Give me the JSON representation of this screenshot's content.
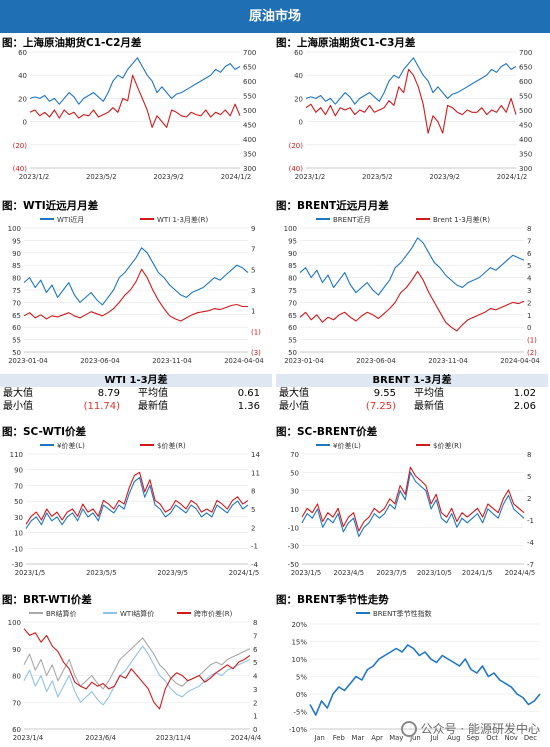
{
  "banner": "原油市场",
  "colors": {
    "blue": "#1f77c4",
    "red": "#d11b1b",
    "gray": "#a8a8a8",
    "lightblue": "#8fc3ea"
  },
  "panels": {
    "p1_title": "图：上海原油期货C1-C2月差",
    "p2_title": "图：上海原油期货C1-C3月差",
    "p3_title": "图：WTI近远月月差",
    "p4_title": "图：BRENT近远月月差",
    "p5_title": "图：SC-WTI价差",
    "p6_title": "图：SC-BRENT价差",
    "p7_title": "图：BRT-WTI价差",
    "p8_title": "图：BRENT季节性走势"
  },
  "tables": {
    "wti": {
      "title": "WTI 1-3月差",
      "max_label": "最大值",
      "max_value": "8.79",
      "avg_label": "平均值",
      "avg_value": "0.61",
      "min_label": "最小值",
      "min_value": "(11.74)",
      "latest_label": "最新值",
      "latest_value": "1.36"
    },
    "brent": {
      "title": "BRENT 1-3月差",
      "max_label": "最大值",
      "max_value": "9.55",
      "avg_label": "平均值",
      "avg_value": "1.02",
      "min_label": "最小值",
      "min_value": "(7.25)",
      "latest_label": "最新值",
      "latest_value": "2.06"
    }
  },
  "watermark": "公众号 · 能源研发中心",
  "chart_data": [
    {
      "id": "c1",
      "type": "line",
      "x_ticks": [
        "2023/1/2",
        "2023/5/2",
        "2023/9/2",
        "2024/1/2"
      ],
      "yleft_ticks": [
        "60",
        "40",
        "20",
        "0",
        "(20)",
        "(40)"
      ],
      "ylim_left": [
        -40,
        60
      ],
      "yright_ticks": [
        "700",
        "650",
        "600",
        "550",
        "500",
        "450",
        "400",
        "350",
        "300"
      ],
      "ylim_right": [
        300,
        700
      ],
      "series": [
        {
          "axis": "right",
          "color": "blue",
          "values": [
            540,
            545,
            540,
            550,
            530,
            540,
            520,
            540,
            560,
            545,
            520,
            540,
            550,
            560,
            545,
            530,
            560,
            600,
            620,
            610,
            640,
            660,
            680,
            650,
            620,
            600,
            560,
            580,
            560,
            540,
            555,
            560,
            570,
            580,
            590,
            600,
            610,
            620,
            640,
            630,
            650,
            660,
            640,
            650
          ]
        },
        {
          "axis": "left",
          "color": "red",
          "values": [
            8,
            10,
            5,
            8,
            4,
            10,
            3,
            10,
            6,
            8,
            3,
            6,
            5,
            10,
            4,
            6,
            8,
            12,
            8,
            20,
            18,
            40,
            30,
            20,
            10,
            -5,
            5,
            0,
            -5,
            10,
            8,
            5,
            4,
            8,
            6,
            5,
            10,
            4,
            8,
            6,
            10,
            5,
            15,
            5
          ]
        }
      ]
    },
    {
      "id": "c2",
      "type": "line",
      "x_ticks": [
        "2023/1/2",
        "2023/5/2",
        "2023/9/2",
        "2024/1/2"
      ],
      "yleft_ticks": [
        "60",
        "40",
        "20",
        "0",
        "(20)",
        "(40)"
      ],
      "ylim_left": [
        -40,
        60
      ],
      "yright_ticks": [
        "700",
        "650",
        "600",
        "550",
        "500",
        "450",
        "400",
        "350",
        "300"
      ],
      "ylim_right": [
        300,
        700
      ],
      "series": [
        {
          "axis": "right",
          "color": "blue",
          "values": [
            540,
            545,
            540,
            550,
            530,
            540,
            520,
            540,
            560,
            545,
            520,
            540,
            550,
            560,
            545,
            530,
            560,
            600,
            620,
            610,
            640,
            660,
            680,
            650,
            620,
            600,
            560,
            580,
            560,
            540,
            555,
            560,
            570,
            580,
            590,
            600,
            610,
            620,
            640,
            630,
            650,
            660,
            640,
            650
          ]
        },
        {
          "axis": "left",
          "color": "red",
          "values": [
            12,
            15,
            8,
            12,
            6,
            14,
            5,
            12,
            10,
            12,
            6,
            10,
            8,
            14,
            8,
            10,
            12,
            18,
            14,
            30,
            25,
            45,
            40,
            30,
            15,
            -10,
            5,
            0,
            -10,
            14,
            12,
            8,
            6,
            10,
            8,
            8,
            12,
            6,
            10,
            8,
            14,
            8,
            20,
            6
          ]
        }
      ]
    },
    {
      "id": "c3",
      "type": "line",
      "legend": [
        "WTI近月",
        "WTI 1-3月差(R)"
      ],
      "x_ticks": [
        "2023-01-04",
        "2023-06-04",
        "2023-11-04",
        "2024-04-04"
      ],
      "yleft_ticks": [
        "100",
        "95",
        "90",
        "85",
        "80",
        "75",
        "70",
        "65",
        "60",
        "55",
        "50"
      ],
      "ylim_left": [
        50,
        100
      ],
      "yright_ticks": [
        "9",
        "7",
        "5",
        "3",
        "1",
        "(1)",
        "(3)"
      ],
      "ylim_right": [
        -3,
        9
      ],
      "series": [
        {
          "axis": "left",
          "color": "blue",
          "values": [
            78,
            80,
            76,
            79,
            74,
            77,
            72,
            75,
            78,
            73,
            70,
            72,
            74,
            71,
            69,
            72,
            75,
            80,
            82,
            85,
            88,
            92,
            90,
            86,
            82,
            80,
            77,
            75,
            73,
            72,
            74,
            75,
            76,
            78,
            80,
            79,
            81,
            83,
            85,
            84,
            82
          ]
        },
        {
          "axis": "right",
          "color": "red",
          "values": [
            0.5,
            0.8,
            0.3,
            0.6,
            0.2,
            0.5,
            0.4,
            0.6,
            0.8,
            0.5,
            0.3,
            0.6,
            0.9,
            0.7,
            0.5,
            0.8,
            1.2,
            1.8,
            2.5,
            3.0,
            3.8,
            5.0,
            4.2,
            3.0,
            2.0,
            1.2,
            0.5,
            0.2,
            0.0,
            0.3,
            0.6,
            0.8,
            0.9,
            1.0,
            1.2,
            1.1,
            1.3,
            1.5,
            1.6,
            1.4,
            1.4
          ]
        }
      ]
    },
    {
      "id": "c4",
      "type": "line",
      "legend": [
        "BRENT近月",
        "Brent 1-3月差(R)"
      ],
      "x_ticks": [
        "2023-01-04",
        "2023-06-04",
        "2023-11-04",
        "2024-04-04"
      ],
      "yleft_ticks": [
        "100",
        "95",
        "90",
        "85",
        "80",
        "75",
        "70",
        "65",
        "60",
        "55",
        "50"
      ],
      "ylim_left": [
        50,
        100
      ],
      "yright_ticks": [
        "8",
        "7",
        "6",
        "5",
        "4",
        "3",
        "2",
        "1",
        "0",
        "(1)",
        "(2)"
      ],
      "ylim_right": [
        -2,
        8
      ],
      "series": [
        {
          "axis": "left",
          "color": "blue",
          "values": [
            82,
            84,
            80,
            83,
            78,
            81,
            76,
            79,
            82,
            77,
            74,
            76,
            78,
            75,
            73,
            76,
            79,
            84,
            86,
            89,
            92,
            96,
            94,
            90,
            86,
            84,
            81,
            79,
            77,
            76,
            78,
            79,
            80,
            82,
            84,
            83,
            85,
            87,
            89,
            88,
            87
          ]
        },
        {
          "axis": "right",
          "color": "red",
          "values": [
            0.8,
            1.2,
            0.6,
            1.0,
            0.4,
            0.8,
            0.6,
            1.0,
            1.2,
            0.8,
            0.5,
            0.9,
            1.2,
            1.0,
            0.7,
            1.1,
            1.5,
            2.0,
            2.8,
            3.2,
            3.8,
            4.5,
            3.8,
            2.8,
            2.0,
            1.2,
            0.4,
            0.0,
            -0.3,
            0.2,
            0.6,
            0.8,
            1.0,
            1.2,
            1.5,
            1.4,
            1.6,
            1.8,
            2.0,
            1.9,
            2.1
          ]
        }
      ]
    },
    {
      "id": "c5",
      "type": "line",
      "legend": [
        "¥价差(L)",
        "$价差(R)"
      ],
      "x_ticks": [
        "2023/1/5",
        "2023/5/5",
        "2023/9/5",
        "2024/1/5"
      ],
      "yleft_ticks": [
        "110",
        "90",
        "70",
        "50",
        "30",
        "10",
        "-10",
        "-30"
      ],
      "ylim_left": [
        -30,
        110
      ],
      "yright_ticks": [
        "14",
        "11",
        "8",
        "5",
        "2",
        "-1",
        "-4"
      ],
      "ylim_right": [
        -4,
        14
      ],
      "series": [
        {
          "axis": "left",
          "color": "blue",
          "values": [
            15,
            25,
            30,
            20,
            35,
            25,
            30,
            20,
            30,
            35,
            25,
            40,
            30,
            35,
            25,
            45,
            40,
            35,
            45,
            40,
            60,
            75,
            80,
            55,
            70,
            45,
            40,
            30,
            35,
            45,
            40,
            35,
            45,
            40,
            30,
            35,
            30,
            45,
            40,
            35,
            45,
            50,
            40,
            45
          ]
        },
        {
          "axis": "right",
          "color": "red",
          "values": [
            2.5,
            3.8,
            4.5,
            3.2,
            5.0,
            3.8,
            4.5,
            3.2,
            4.5,
            5.0,
            3.8,
            5.8,
            4.5,
            5.0,
            3.8,
            6.4,
            5.8,
            5.0,
            6.4,
            5.8,
            8.5,
            10.5,
            11.0,
            7.8,
            9.8,
            6.4,
            5.8,
            4.5,
            5.0,
            6.4,
            5.8,
            5.0,
            6.4,
            5.8,
            4.5,
            5.0,
            4.5,
            6.4,
            5.8,
            5.0,
            6.4,
            7.0,
            5.8,
            6.4
          ]
        }
      ]
    },
    {
      "id": "c6",
      "type": "line",
      "legend": [
        "¥价差(L)",
        "$价差(R)"
      ],
      "x_ticks": [
        "2023/1/5",
        "2023/4/5",
        "2023/7/5",
        "2023/10/5",
        "2024/1/5",
        "2024/4/5"
      ],
      "yleft_ticks": [
        "70",
        "50",
        "30",
        "10",
        "-10",
        "-30",
        "-50"
      ],
      "ylim_left": [
        -50,
        70
      ],
      "yright_ticks": [
        "8",
        "5",
        "2",
        "-1",
        "-4",
        "-7"
      ],
      "ylim_right": [
        -7,
        8
      ],
      "series": [
        {
          "axis": "left",
          "color": "blue",
          "values": [
            -5,
            5,
            0,
            10,
            -10,
            0,
            -5,
            5,
            -15,
            -5,
            0,
            -20,
            -10,
            -5,
            5,
            0,
            5,
            15,
            10,
            30,
            20,
            50,
            40,
            35,
            30,
            10,
            20,
            0,
            -5,
            5,
            -10,
            0,
            -5,
            0,
            5,
            -5,
            10,
            5,
            0,
            15,
            25,
            10,
            5,
            0
          ]
        },
        {
          "axis": "right",
          "color": "red",
          "values": [
            -0.6,
            0.6,
            0.0,
            1.2,
            -1.2,
            0.0,
            -0.6,
            0.6,
            -1.9,
            -0.6,
            0.0,
            -2.5,
            -1.2,
            -0.6,
            0.6,
            0.0,
            0.6,
            1.9,
            1.2,
            3.7,
            2.5,
            6.2,
            5.0,
            4.4,
            3.7,
            1.2,
            2.5,
            0.0,
            -0.6,
            0.6,
            -1.2,
            0.0,
            -0.6,
            0.0,
            0.6,
            -0.6,
            1.2,
            0.6,
            0.0,
            1.9,
            3.1,
            1.2,
            0.6,
            0.0
          ]
        }
      ]
    },
    {
      "id": "c7",
      "type": "line",
      "legend": [
        "BR结算价",
        "WTI结算价",
        "跨市价差(R)"
      ],
      "x_ticks": [
        "2023/1/4",
        "2023/6/4",
        "2023/11/4",
        "2024/4/4"
      ],
      "yleft_ticks": [
        "100",
        "90",
        "80",
        "70",
        "60"
      ],
      "ylim_left": [
        60,
        100
      ],
      "yright_ticks": [
        "8",
        "7",
        "6",
        "5",
        "4",
        "3",
        "2",
        "1",
        "0"
      ],
      "ylim_right": [
        0,
        8
      ],
      "series": [
        {
          "axis": "left",
          "color": "gray",
          "values": [
            84,
            88,
            82,
            86,
            80,
            84,
            78,
            82,
            86,
            80,
            76,
            78,
            80,
            77,
            75,
            78,
            82,
            86,
            88,
            90,
            92,
            94,
            91,
            88,
            84,
            82,
            79,
            77,
            76,
            78,
            79,
            80,
            82,
            84,
            85,
            84,
            86,
            87,
            88,
            89,
            90
          ]
        },
        {
          "axis": "left",
          "color": "lightblue",
          "values": [
            78,
            82,
            76,
            80,
            74,
            78,
            72,
            76,
            80,
            74,
            70,
            72,
            74,
            71,
            69,
            72,
            76,
            80,
            82,
            85,
            88,
            91,
            88,
            84,
            80,
            78,
            75,
            73,
            72,
            74,
            75,
            76,
            78,
            80,
            81,
            80,
            82,
            83,
            84,
            85,
            86
          ]
        },
        {
          "axis": "right",
          "color": "red",
          "values": [
            7.5,
            7.0,
            7.2,
            6.5,
            7.0,
            6.2,
            5.8,
            5.0,
            4.5,
            3.5,
            3.2,
            3.0,
            3.5,
            3.2,
            3.4,
            3.0,
            3.2,
            4.0,
            3.8,
            4.5,
            4.0,
            3.5,
            3.0,
            2.0,
            1.5,
            3.0,
            3.8,
            4.2,
            4.0,
            3.6,
            3.8,
            4.0,
            3.5,
            3.8,
            4.2,
            4.5,
            4.8,
            4.5,
            5.0,
            5.2,
            5.5
          ]
        }
      ]
    },
    {
      "id": "c8",
      "type": "line",
      "legend": [
        "BRENT季节性指数"
      ],
      "x_ticks": [
        "Jan",
        "Feb",
        "Mar",
        "Apr",
        "May",
        "Jun",
        "Jul",
        "Aug",
        "Sep",
        "Oct",
        "Nov",
        "Dec"
      ],
      "yleft_ticks": [
        "20%",
        "15%",
        "10%",
        "5%",
        "0%",
        "-5%",
        "-10%"
      ],
      "ylim_left": [
        -10,
        20
      ],
      "series": [
        {
          "axis": "left",
          "color": "blue",
          "values": [
            -3,
            -6,
            -2,
            -4,
            0,
            2,
            1,
            3,
            5,
            4,
            7,
            8,
            10,
            11,
            12,
            13,
            12,
            14,
            13,
            11,
            12,
            10,
            9,
            11,
            10,
            9,
            8,
            10,
            7,
            6,
            8,
            5,
            6,
            4,
            3,
            2,
            0,
            -1,
            -3,
            -2,
            0
          ]
        }
      ]
    }
  ]
}
